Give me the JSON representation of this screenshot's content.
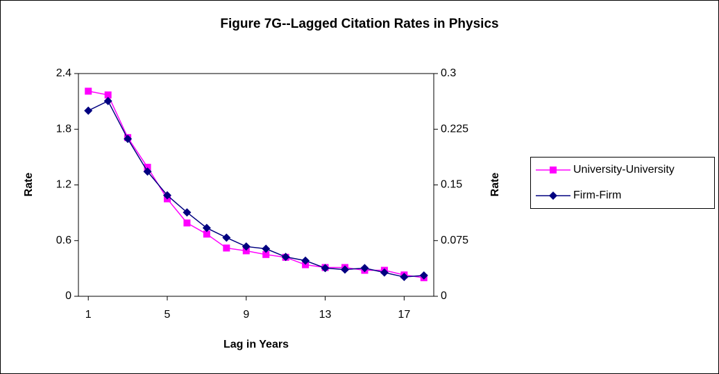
{
  "chart_data": {
    "type": "line",
    "title": "Figure 7G--Lagged Citation Rates in Physics",
    "x_label": "Lag in Years",
    "y_label": "Rate",
    "y2_label": "Rate",
    "x": [
      1,
      2,
      3,
      4,
      5,
      6,
      7,
      8,
      9,
      10,
      11,
      12,
      13,
      14,
      15,
      16,
      17,
      18
    ],
    "xlim": [
      0.5,
      18.5
    ],
    "xticks": [
      1,
      5,
      9,
      13,
      17
    ],
    "ylim": [
      0,
      2.4
    ],
    "yticks": [
      0,
      0.6,
      1.2,
      1.8,
      2.4
    ],
    "y2lim": [
      0,
      0.3
    ],
    "y2ticks": [
      0,
      0.075,
      0.15,
      0.225,
      0.3
    ],
    "legend": "right",
    "series": [
      {
        "name": "University-University",
        "color": "#ff00ff",
        "marker": "square",
        "values": [
          2.21,
          2.17,
          1.71,
          1.39,
          1.05,
          0.79,
          0.67,
          0.52,
          0.49,
          0.45,
          0.42,
          0.34,
          0.31,
          0.31,
          0.28,
          0.28,
          0.23,
          0.2
        ]
      },
      {
        "name": "Firm-Firm",
        "color": "#000080",
        "marker": "diamond",
        "axis": "y2",
        "values": [
          0.25,
          0.263,
          0.212,
          0.168,
          0.136,
          0.113,
          0.092,
          0.079,
          0.067,
          0.064,
          0.053,
          0.048,
          0.038,
          0.036,
          0.038,
          0.032,
          0.026,
          0.028
        ]
      }
    ]
  }
}
